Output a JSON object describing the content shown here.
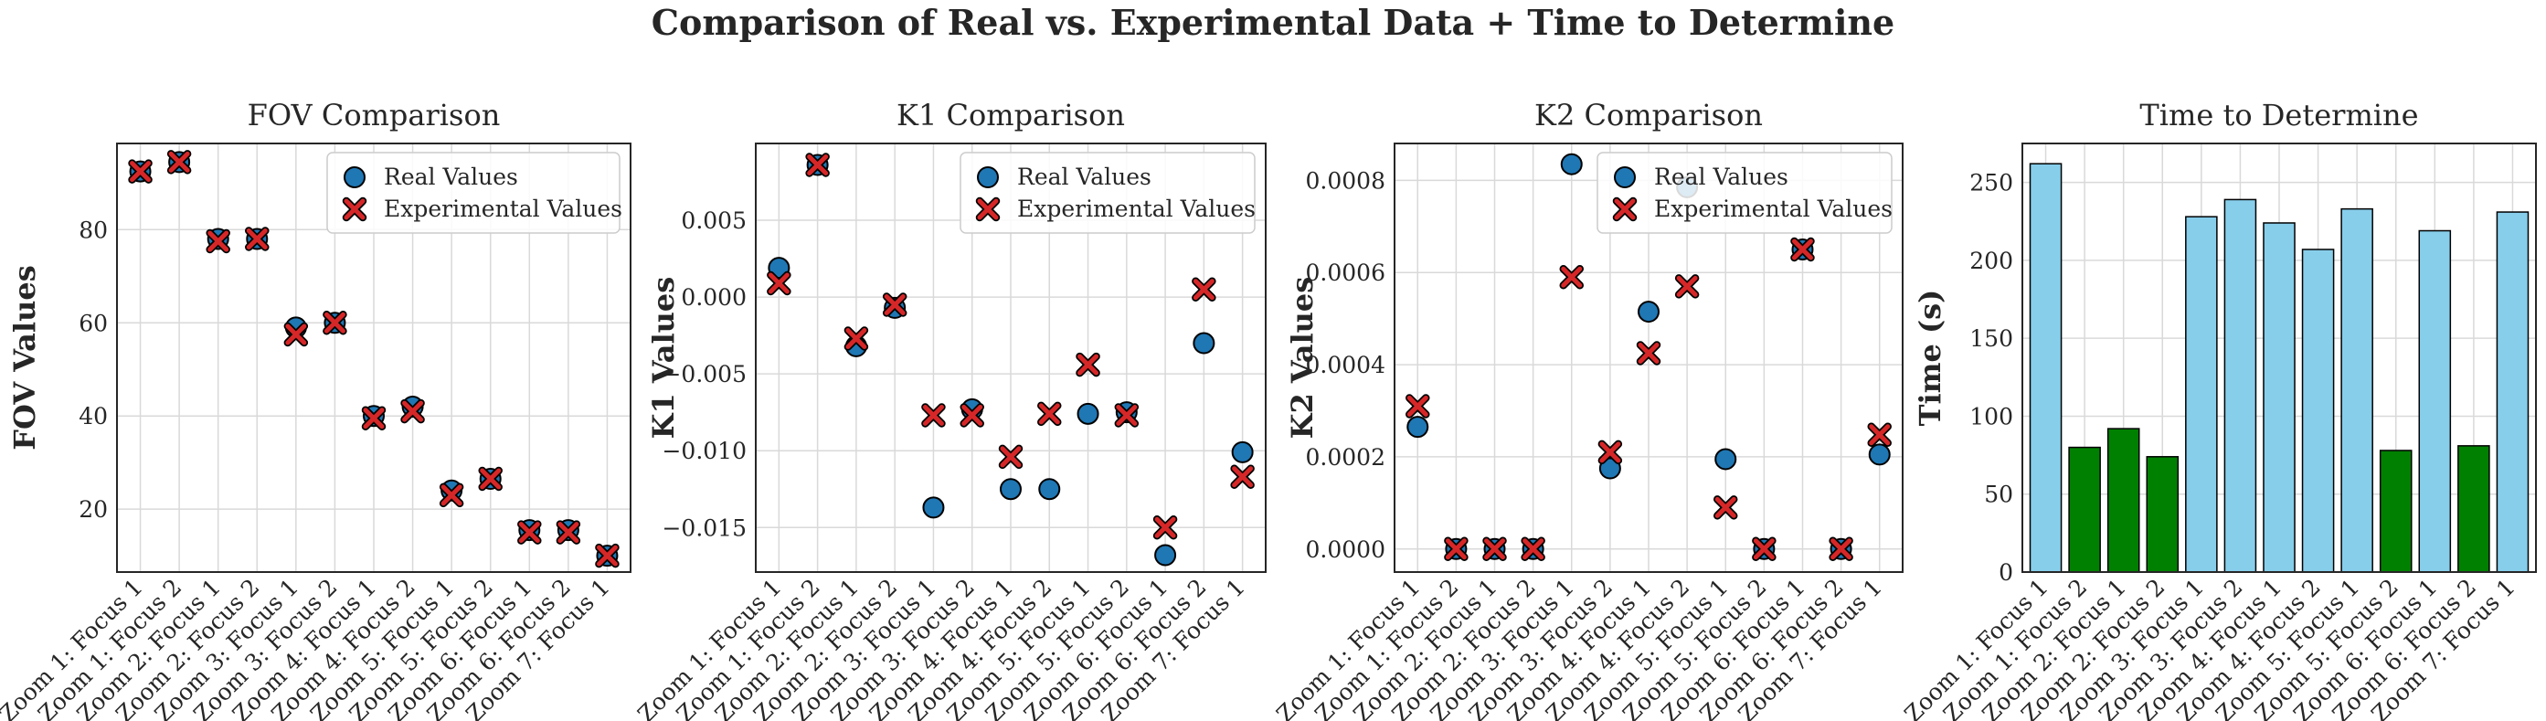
{
  "figure": {
    "suptitle": "Comparison of Real vs. Experimental Data + Time to Determine"
  },
  "colors": {
    "real_marker": "#1f77b4",
    "experimental_marker": "#d62728",
    "bar_default": "#87ceeb",
    "bar_highlight": "#008000",
    "edge": "#000000",
    "grid": "#d9d9d9"
  },
  "chart_data": [
    {
      "type": "scatter",
      "title": "FOV Comparison",
      "xlabel": "",
      "ylabel": "FOV Values",
      "categories": [
        "Zoom 1: Focus 1",
        "Zoom 1: Focus 2",
        "Zoom 2: Focus 1",
        "Zoom 2: Focus 2",
        "Zoom 3: Focus 1",
        "Zoom 3: Focus 2",
        "Zoom 4: Focus 1",
        "Zoom 4: Focus 2",
        "Zoom 5: Focus 1",
        "Zoom 5: Focus 2",
        "Zoom 6: Focus 1",
        "Zoom 6: Focus 2",
        "Zoom 7: Focus 1"
      ],
      "ylim": [
        6.5,
        98.5
      ],
      "yticks": [
        20,
        40,
        60,
        80
      ],
      "ytick_labels": [
        "20",
        "40",
        "60",
        "80"
      ],
      "grid": true,
      "legend": "top-right",
      "series": [
        {
          "name": "Real Values",
          "marker": "circle",
          "values": [
            92.5,
            94.5,
            78,
            78,
            59,
            60,
            40,
            42,
            24,
            26.5,
            15.5,
            15.5,
            10
          ]
        },
        {
          "name": "Experimental Values",
          "marker": "x",
          "values": [
            92.5,
            94.5,
            77.5,
            78,
            57.5,
            60,
            39.5,
            41,
            23,
            26.5,
            15,
            15,
            10
          ]
        }
      ]
    },
    {
      "type": "scatter",
      "title": "K1 Comparison",
      "xlabel": "",
      "ylabel": "K1 Values",
      "categories": [
        "Zoom 1: Focus 1",
        "Zoom 1: Focus 2",
        "Zoom 2: Focus 1",
        "Zoom 2: Focus 2",
        "Zoom 3: Focus 1",
        "Zoom 3: Focus 2",
        "Zoom 4: Focus 1",
        "Zoom 4: Focus 2",
        "Zoom 5: Focus 1",
        "Zoom 5: Focus 2",
        "Zoom 6: Focus 1",
        "Zoom 6: Focus 2",
        "Zoom 7: Focus 1"
      ],
      "ylim": [
        -0.0179,
        0.01
      ],
      "yticks": [
        -0.015,
        -0.01,
        -0.005,
        0.0,
        0.005
      ],
      "ytick_labels": [
        "−0.015",
        "−0.010",
        "−0.005",
        "0.000",
        "0.005"
      ],
      "grid": true,
      "legend": "top-right",
      "series": [
        {
          "name": "Real Values",
          "marker": "circle",
          "values": [
            0.0019,
            0.0086,
            -0.0032,
            -0.0007,
            -0.0137,
            -0.0073,
            -0.0125,
            -0.0125,
            -0.0076,
            -0.0075,
            -0.0168,
            -0.003,
            -0.0101
          ]
        },
        {
          "name": "Experimental Values",
          "marker": "x",
          "values": [
            0.0009,
            0.0086,
            -0.0027,
            -0.0005,
            -0.0077,
            -0.0077,
            -0.0104,
            -0.0076,
            -0.0044,
            -0.0077,
            -0.015,
            0.0005,
            -0.0117
          ]
        }
      ]
    },
    {
      "type": "scatter",
      "title": "K2 Comparison",
      "xlabel": "",
      "ylabel": "K2 Values",
      "categories": [
        "Zoom 1: Focus 1",
        "Zoom 1: Focus 2",
        "Zoom 2: Focus 1",
        "Zoom 2: Focus 2",
        "Zoom 3: Focus 1",
        "Zoom 3: Focus 2",
        "Zoom 4: Focus 1",
        "Zoom 4: Focus 2",
        "Zoom 5: Focus 1",
        "Zoom 5: Focus 2",
        "Zoom 6: Focus 1",
        "Zoom 6: Focus 2",
        "Zoom 7: Focus 1"
      ],
      "ylim": [
        -5e-05,
        0.00088
      ],
      "yticks": [
        0.0,
        0.0002,
        0.0004,
        0.0006,
        0.0008
      ],
      "ytick_labels": [
        "0.0000",
        "0.0002",
        "0.0004",
        "0.0006",
        "0.0008"
      ],
      "grid": true,
      "legend": "top-right",
      "series": [
        {
          "name": "Real Values",
          "marker": "circle",
          "values": [
            0.000265,
            0.0,
            0.0,
            0.0,
            0.000835,
            0.000175,
            0.000515,
            0.000785,
            0.000195,
            0.0,
            0.00065,
            0.0,
            0.000205
          ]
        },
        {
          "name": "Experimental Values",
          "marker": "x",
          "values": [
            0.00031,
            0.0,
            0.0,
            0.0,
            0.00059,
            0.00021,
            0.000425,
            0.00057,
            9e-05,
            0.0,
            0.00065,
            0.0,
            0.000248
          ]
        }
      ]
    },
    {
      "type": "bar",
      "title": "Time to Determine",
      "xlabel": "",
      "ylabel": "Time (s)",
      "categories": [
        "Zoom 1: Focus 1",
        "Zoom 1: Focus 2",
        "Zoom 2: Focus 1",
        "Zoom 2: Focus 2",
        "Zoom 3: Focus 1",
        "Zoom 3: Focus 2",
        "Zoom 4: Focus 1",
        "Zoom 4: Focus 2",
        "Zoom 5: Focus 1",
        "Zoom 5: Focus 2",
        "Zoom 6: Focus 1",
        "Zoom 6: Focus 2",
        "Zoom 7: Focus 1"
      ],
      "values": [
        262,
        80,
        92,
        74,
        228,
        239,
        224,
        207,
        233,
        78,
        219,
        81,
        231
      ],
      "bar_colors": [
        "#87ceeb",
        "#008000",
        "#008000",
        "#008000",
        "#87ceeb",
        "#87ceeb",
        "#87ceeb",
        "#87ceeb",
        "#87ceeb",
        "#008000",
        "#87ceeb",
        "#008000",
        "#87ceeb"
      ],
      "ylim": [
        0,
        275
      ],
      "yticks": [
        0,
        50,
        100,
        150,
        200,
        250
      ],
      "ytick_labels": [
        "0",
        "50",
        "100",
        "150",
        "200",
        "250"
      ],
      "grid": true
    }
  ]
}
